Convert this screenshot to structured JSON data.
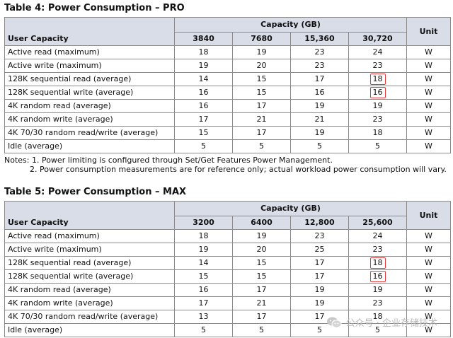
{
  "table4": {
    "title": "Table 4: Power Consumption – PRO",
    "capacity_header": "Capacity (GB)",
    "row_header": "User Capacity",
    "unit_header": "Unit",
    "capacities": [
      "3840",
      "7680",
      "15,360",
      "30,720"
    ],
    "rows": [
      {
        "label": "Active read (maximum)",
        "values": [
          "18",
          "19",
          "23",
          "24"
        ],
        "unit": "W"
      },
      {
        "label": "Active write (maximum)",
        "values": [
          "19",
          "20",
          "23",
          "23"
        ],
        "unit": "W"
      },
      {
        "label": "128K sequential read (average)",
        "values": [
          "14",
          "15",
          "17",
          "18"
        ],
        "unit": "W"
      },
      {
        "label": "128K sequential write (average)",
        "values": [
          "16",
          "15",
          "16",
          "16"
        ],
        "unit": "W"
      },
      {
        "label": "4K random read (average)",
        "values": [
          "16",
          "17",
          "19",
          "19"
        ],
        "unit": "W"
      },
      {
        "label": "4K random write (average)",
        "values": [
          "17",
          "21",
          "21",
          "23"
        ],
        "unit": "W"
      },
      {
        "label": "4K 70/30 random read/write (average)",
        "values": [
          "15",
          "17",
          "19",
          "18"
        ],
        "unit": "W"
      },
      {
        "label": "Idle (average)",
        "values": [
          "5",
          "5",
          "5",
          "5"
        ],
        "unit": "W"
      }
    ]
  },
  "notes": {
    "line1": "Notes: 1. Power limiting is configured through Set/Get Features Power Management.",
    "line2": "2. Power consumption measurements are for reference only; actual workload power consumption will vary."
  },
  "table5": {
    "title": "Table 5: Power Consumption – MAX",
    "capacity_header": "Capacity (GB)",
    "row_header": "User Capacity",
    "unit_header": "Unit",
    "capacities": [
      "3200",
      "6400",
      "12,800",
      "25,600"
    ],
    "rows": [
      {
        "label": "Active read (maximum)",
        "values": [
          "18",
          "19",
          "23",
          "24"
        ],
        "unit": "W"
      },
      {
        "label": "Active write (maximum)",
        "values": [
          "19",
          "20",
          "25",
          "23"
        ],
        "unit": "W"
      },
      {
        "label": "128K sequential read (average)",
        "values": [
          "14",
          "15",
          "17",
          "18"
        ],
        "unit": "W"
      },
      {
        "label": "128K sequential write (average)",
        "values": [
          "15",
          "15",
          "17",
          "16"
        ],
        "unit": "W"
      },
      {
        "label": "4K random read (average)",
        "values": [
          "16",
          "17",
          "19",
          "19"
        ],
        "unit": "W"
      },
      {
        "label": "4K random write (average)",
        "values": [
          "17",
          "21",
          "19",
          "23"
        ],
        "unit": "W"
      },
      {
        "label": "4K 70/30 random read/write (average)",
        "values": [
          "13",
          "17",
          "17",
          "18"
        ],
        "unit": "W"
      },
      {
        "label": "Idle (average)",
        "values": [
          "5",
          "5",
          "5",
          "5"
        ],
        "unit": "W"
      }
    ]
  },
  "watermark": {
    "text": "公众号 · 企业存储技术",
    "icon": "wechat-icon"
  },
  "colors": {
    "header_bg": "#d9dde8",
    "highlight": "#e33b3b"
  }
}
